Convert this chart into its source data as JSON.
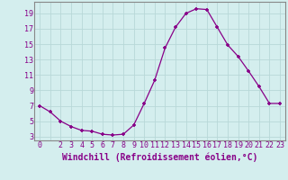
{
  "x": [
    0,
    1,
    2,
    3,
    4,
    5,
    6,
    7,
    8,
    9,
    10,
    11,
    12,
    13,
    14,
    15,
    16,
    17,
    18,
    19,
    20,
    21,
    22,
    23
  ],
  "y": [
    7,
    6.2,
    5,
    4.3,
    3.8,
    3.7,
    3.3,
    3.2,
    3.3,
    4.5,
    7.3,
    10.3,
    14.5,
    17.2,
    19.0,
    19.6,
    19.5,
    17.2,
    14.9,
    13.4,
    11.5,
    9.5,
    7.3,
    7.3
  ],
  "xlim": [
    -0.5,
    23.5
  ],
  "ylim": [
    2.5,
    20.5
  ],
  "xticks": [
    0,
    2,
    3,
    4,
    5,
    6,
    7,
    8,
    9,
    10,
    11,
    12,
    13,
    14,
    15,
    16,
    17,
    18,
    19,
    20,
    21,
    22,
    23
  ],
  "yticks": [
    3,
    5,
    7,
    9,
    11,
    13,
    15,
    17,
    19
  ],
  "xlabel": "Windchill (Refroidissement éolien,°C)",
  "line_color": "#880088",
  "marker": "+",
  "background_color": "#d4eeee",
  "grid_color": "#b8d8d8",
  "spine_color": "#888888",
  "tick_fontsize": 6,
  "label_fontsize": 7
}
